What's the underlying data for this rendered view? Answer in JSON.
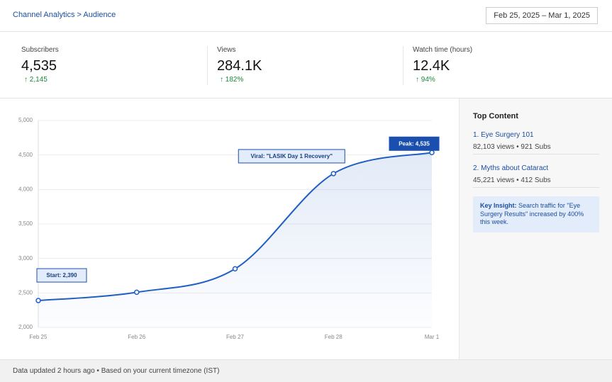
{
  "header": {
    "breadcrumb": "Channel Analytics > Audience",
    "date_range": "Feb 25, 2025 – Mar 1, 2025"
  },
  "stats": [
    {
      "label": "Subscribers",
      "value": "4,535",
      "change": "↑ 2,145"
    },
    {
      "label": "Views",
      "value": "284.1K",
      "change": "↑ 182%"
    },
    {
      "label": "Watch time (hours)",
      "value": "12.4K",
      "change": "↑ 94%"
    }
  ],
  "chart_data": {
    "type": "area",
    "categories": [
      "Feb 25",
      "Feb 26",
      "Feb 27",
      "Feb 28",
      "Mar 1"
    ],
    "values": [
      2390,
      2510,
      2850,
      4230,
      4535
    ],
    "color": "#1f5fc4",
    "ylim": [
      2000,
      5000
    ],
    "yticks": [
      {
        "value": 2000,
        "label": "2,000"
      },
      {
        "value": 2500,
        "label": "2,500"
      },
      {
        "value": 3000,
        "label": "3,000"
      },
      {
        "value": 3500,
        "label": "3,500"
      },
      {
        "value": 4000,
        "label": "4,000"
      },
      {
        "value": 4500,
        "label": "4,500"
      },
      {
        "value": 5000,
        "label": "5,000"
      }
    ],
    "grid": true,
    "annotations": [
      "Start: 2,390",
      "Viral: \"LASIK Day 1 Recovery\"",
      "Peak: 4,535"
    ]
  },
  "sidebar": {
    "title": "Top Content",
    "items": [
      {
        "title": "1. Eye Surgery 101",
        "meta": "82,103 views • 921 Subs"
      },
      {
        "title": "2. Myths about Cataract",
        "meta": "45,221 views • 412 Subs"
      }
    ],
    "insight_label": "Key Insight:",
    "insight_text": "Search traffic for \"Eye Surgery Results\" increased by 400% this week."
  },
  "footer": "Data updated 2 hours ago • Based on your current timezone (IST)"
}
